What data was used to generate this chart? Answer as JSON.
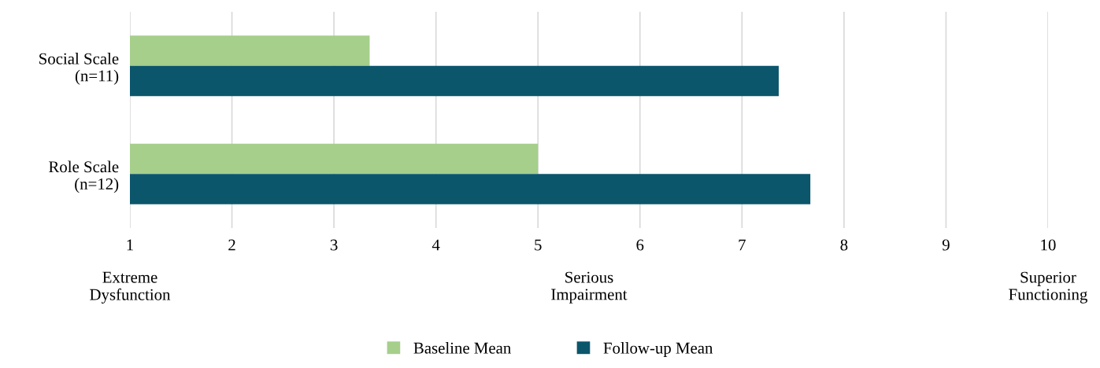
{
  "chart_data": {
    "type": "bar",
    "orientation": "horizontal",
    "categories": [
      "Social Scale\n(n=11)",
      "Role Scale\n(n=12)"
    ],
    "series": [
      {
        "name": "Baseline Mean",
        "color": "#a5cf8b",
        "values": [
          3.35,
          5.0
        ]
      },
      {
        "name": "Follow-up Mean",
        "color": "#0b566b",
        "values": [
          7.36,
          7.67
        ]
      }
    ],
    "xlim": [
      1,
      10
    ],
    "xticks": [
      1,
      2,
      3,
      4,
      5,
      6,
      7,
      8,
      9,
      10
    ],
    "annotations": [
      "Extreme\nDysfunction",
      "Serious\nImpairment",
      "Superior\nFunctioning"
    ],
    "grid": "x",
    "legend": "bottom"
  }
}
